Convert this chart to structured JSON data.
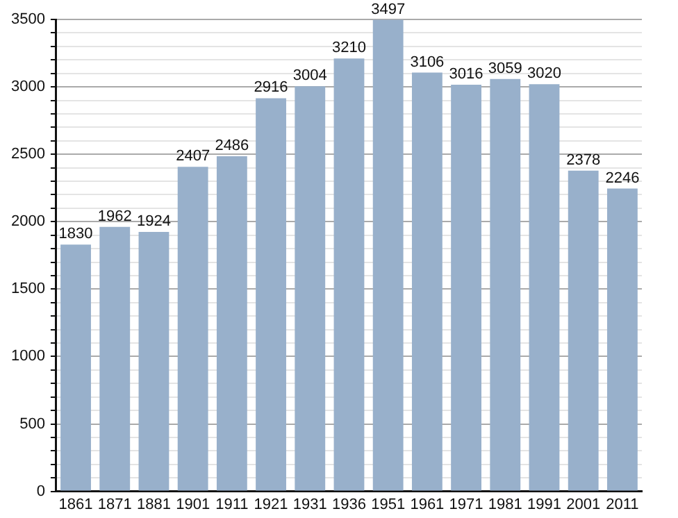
{
  "chart_data": {
    "type": "bar",
    "categories": [
      "1861",
      "1871",
      "1881",
      "1901",
      "1911",
      "1921",
      "1931",
      "1936",
      "1951",
      "1961",
      "1971",
      "1981",
      "1991",
      "2001",
      "2011"
    ],
    "values": [
      1830,
      1962,
      1924,
      2407,
      2486,
      2916,
      3004,
      3210,
      3497,
      3106,
      3016,
      3059,
      3020,
      2378,
      2246
    ],
    "color": "#98b0cb",
    "ylim": [
      0,
      3500
    ],
    "yticks": [
      0,
      {
        "value": 100,
        "label": null
      },
      {
        "value": 200,
        "label": null
      },
      {
        "value": 300,
        "label": null
      },
      {
        "value": 400,
        "label": null
      },
      500,
      {
        "value": 600,
        "label": null
      },
      {
        "value": 700,
        "label": null
      },
      {
        "value": 800,
        "label": null
      },
      {
        "value": 900,
        "label": null
      },
      1000,
      {
        "value": 1100,
        "label": null
      },
      {
        "value": 1200,
        "label": null
      },
      {
        "value": 1300,
        "label": null
      },
      {
        "value": 1400,
        "label": null
      },
      1500,
      {
        "value": 1600,
        "label": null
      },
      {
        "value": 1700,
        "label": null
      },
      {
        "value": 1800,
        "label": null
      },
      {
        "value": 1900,
        "label": null
      },
      2000,
      {
        "value": 2100,
        "label": null
      },
      {
        "value": 2200,
        "label": null
      },
      {
        "value": 2300,
        "label": null
      },
      {
        "value": 2400,
        "label": null
      },
      2500,
      {
        "value": 2600,
        "label": null
      },
      {
        "value": 2700,
        "label": null
      },
      {
        "value": 2800,
        "label": null
      },
      {
        "value": 2900,
        "label": null
      },
      3000,
      {
        "value": 3100,
        "label": null
      },
      {
        "value": 3200,
        "label": null
      },
      {
        "value": 3300,
        "label": null
      },
      {
        "value": 3400,
        "label": null
      },
      3500
    ],
    "grid": "y",
    "data_labels": true
  }
}
